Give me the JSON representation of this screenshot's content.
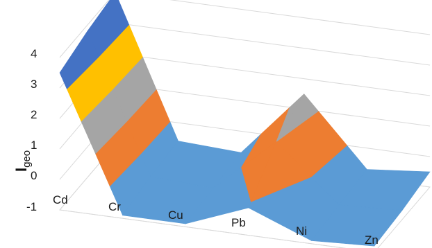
{
  "chart_data": {
    "type": "surface-3d",
    "title": "",
    "xlabel": "",
    "ylabel": "I",
    "ylabel_subscript": "geo",
    "categories": [
      "Cd",
      "Cr",
      "Cu",
      "Pb",
      "Ni",
      "Zn"
    ],
    "y_ticks": [
      "4",
      "3",
      "2",
      "1",
      "0",
      "-1"
    ],
    "ylim": [
      -1,
      4
    ],
    "grid": true,
    "legend": "none",
    "series": [
      {
        "values": [
          3.5,
          -0.9,
          -0.9,
          -0.1,
          -0.9,
          -0.8
        ]
      },
      {
        "values": [
          3.8,
          -0.7,
          -0.8,
          1.0,
          -0.8,
          -0.7
        ]
      },
      {
        "values": [
          4.0,
          -0.6,
          -0.7,
          1.5,
          -0.7,
          -0.5
        ]
      }
    ],
    "band_colors": [
      "#5b9bd5",
      "#ed7d31",
      "#a5a5a5",
      "#ffc000",
      "#4472c4"
    ]
  }
}
